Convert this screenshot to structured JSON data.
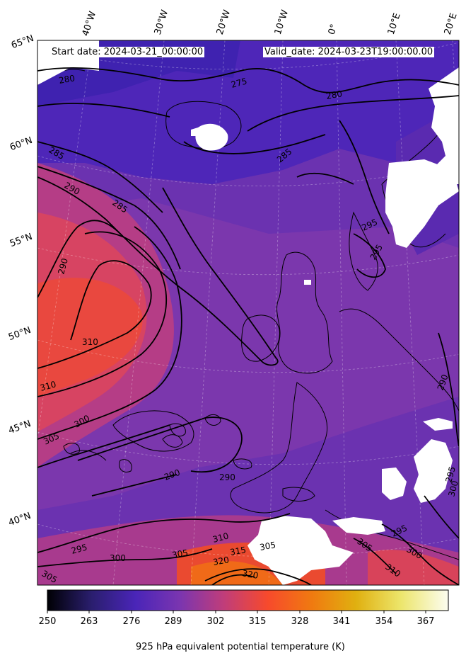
{
  "header": {
    "start_date": "Start date: 2024-03-21_00:00:00",
    "valid_date": "Valid_date: 2024-03-23T19:00:00.00"
  },
  "longitude_labels": [
    "40°W",
    "30°W",
    "20°W",
    "10°W",
    "0°",
    "10°E",
    "20°E"
  ],
  "latitude_labels": [
    "65°N",
    "60°N",
    "55°N",
    "50°N",
    "45°N",
    "40°N"
  ],
  "contour_labels": [
    "280",
    "275",
    "280",
    "285",
    "285",
    "290",
    "285",
    "290",
    "310",
    "310",
    "305",
    "300",
    "290",
    "290",
    "295",
    "300",
    "305",
    "310",
    "315",
    "320",
    "320",
    "305",
    "295",
    "295",
    "295",
    "300",
    "305",
    "310",
    "290",
    "295",
    "300",
    "305"
  ],
  "colorbar": {
    "ticks": [
      "250",
      "263",
      "276",
      "289",
      "302",
      "315",
      "328",
      "341",
      "354",
      "367"
    ],
    "label": "925 hPa equivalent potential temperature (K)",
    "colors": [
      "#000004",
      "#2a1e6e",
      "#4a25b8",
      "#8a3aa8",
      "#d8405a",
      "#f74a2c",
      "#f07a10",
      "#e0b010",
      "#ece56a",
      "#fcfdf0"
    ]
  }
}
